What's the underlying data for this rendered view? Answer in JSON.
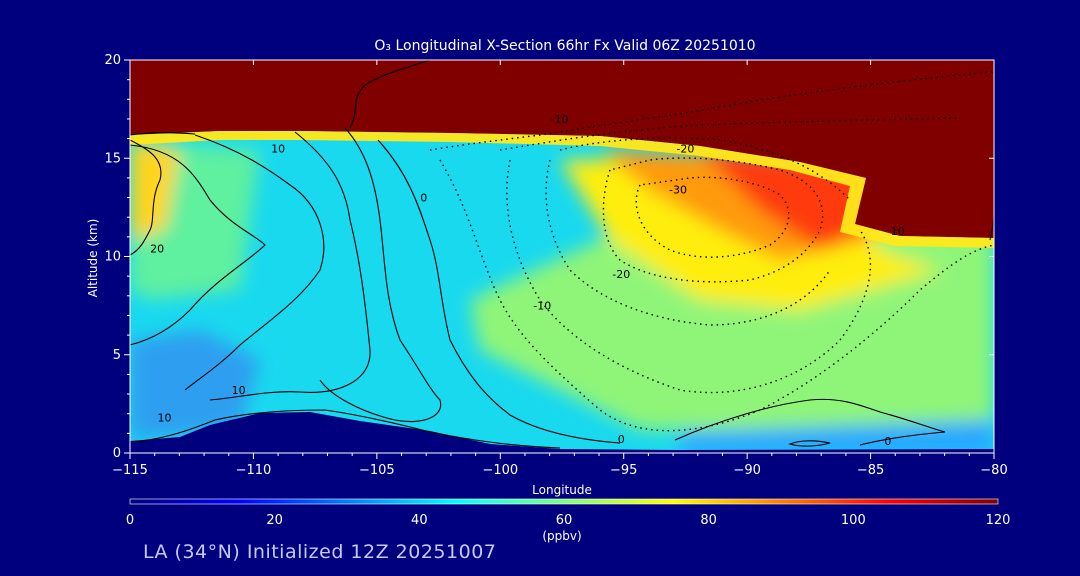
{
  "chart_data": {
    "type": "heatmap",
    "title": "O₃ Longitudinal X-Section 66hr  Fx Valid 06Z 20251010",
    "xlabel": "Longitude",
    "ylabel": "Altitude (km)",
    "xlim": [
      -115,
      -80
    ],
    "ylim": [
      0,
      20
    ],
    "x_ticks": [
      -115,
      -110,
      -105,
      -100,
      -95,
      -90,
      -85,
      -80
    ],
    "x_tick_labels": [
      "−115",
      "−110",
      "−105",
      "−100",
      "−95",
      "−90",
      "−85",
      "−80"
    ],
    "y_ticks": [
      0,
      5,
      10,
      15,
      20
    ],
    "y_tick_labels": [
      "0",
      "5",
      "10",
      "15",
      "20"
    ],
    "colorbar": {
      "label": "(ppbv)",
      "min": 0,
      "max": 120,
      "ticks": [
        0,
        20,
        40,
        60,
        80,
        100,
        120
      ],
      "tick_labels": [
        "0",
        "20",
        "40",
        "60",
        "80",
        "100",
        "120"
      ],
      "colors": [
        "#00007f",
        "#0000ff",
        "#007fff",
        "#00ffff",
        "#7fff7f",
        "#ffff00",
        "#ff7f00",
        "#ff0000",
        "#7f0000"
      ]
    },
    "contour_labels": [
      {
        "text": "10",
        "lon": -109,
        "alt": 15.3
      },
      {
        "text": "20",
        "lon": -113.9,
        "alt": 10.2
      },
      {
        "text": "0",
        "lon": -103.1,
        "alt": 12.8
      },
      {
        "text": "10",
        "lon": -110.6,
        "alt": 3.0
      },
      {
        "text": "10",
        "lon": -113.6,
        "alt": 1.6
      },
      {
        "text": "-10",
        "lon": -97.6,
        "alt": 16.8
      },
      {
        "text": "-20",
        "lon": -92.5,
        "alt": 15.3
      },
      {
        "text": "-30",
        "lon": -92.8,
        "alt": 13.2
      },
      {
        "text": "-20",
        "lon": -95.1,
        "alt": 8.9
      },
      {
        "text": "-10",
        "lon": -98.3,
        "alt": 7.3
      },
      {
        "text": "0",
        "lon": -95.1,
        "alt": 0.5
      },
      {
        "text": "0",
        "lon": -84.3,
        "alt": 0.4
      },
      {
        "text": "10",
        "lon": -83.9,
        "alt": 11.1
      }
    ]
  },
  "footer": {
    "caption": "LA (34°N) Initialized 12Z 20251007"
  }
}
